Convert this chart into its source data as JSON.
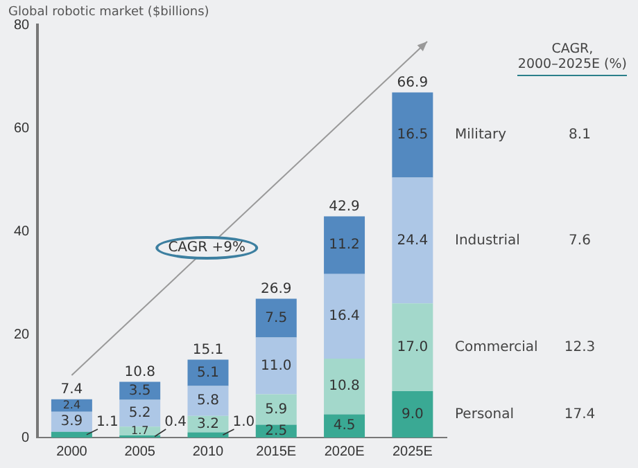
{
  "chart_data": {
    "type": "bar",
    "title": "Global robotic market ($billions)",
    "stacked": true,
    "categories": [
      "2000",
      "2005",
      "2010",
      "2015E",
      "2020E",
      "2025E"
    ],
    "ylim": [
      0,
      80
    ],
    "yticks": [
      0,
      20,
      40,
      60,
      80
    ],
    "grid": false,
    "legend": false,
    "series": [
      {
        "name": "Personal",
        "color": "#3aa994",
        "values": [
          1.1,
          0.4,
          1.0,
          2.5,
          4.5,
          9.0
        ],
        "value_labels": [
          "1.1",
          "0.4",
          "1.0",
          "2.5",
          "4.5",
          "9.0"
        ]
      },
      {
        "name": "Commercial",
        "color": "#a3d8cb",
        "values": [
          null,
          1.7,
          3.2,
          5.9,
          10.8,
          17.0
        ],
        "value_labels": [
          null,
          "1.7",
          "3.2",
          "5.9",
          "10.8",
          "17.0"
        ]
      },
      {
        "name": "Industrial",
        "color": "#adc7e6",
        "values": [
          3.9,
          5.2,
          5.8,
          11.0,
          16.4,
          24.4
        ],
        "value_labels": [
          "3.9",
          "5.2",
          "5.8",
          "11.0",
          "16.4",
          "24.4"
        ]
      },
      {
        "name": "Military",
        "color": "#5389c0",
        "values": [
          2.4,
          3.5,
          5.1,
          7.5,
          11.2,
          16.5
        ],
        "value_labels": [
          "2.4",
          "3.5",
          "5.1",
          "7.5",
          "11.2",
          "16.5"
        ]
      }
    ],
    "totals": [
      "7.4",
      "10.8",
      "15.1",
      "26.9",
      "42.9",
      "66.9"
    ],
    "annotations": [
      "CAGR +9%",
      "CAGR,\n2000–2025E (%)",
      "17.4",
      "12.3",
      "7.6",
      "8.1"
    ]
  }
}
